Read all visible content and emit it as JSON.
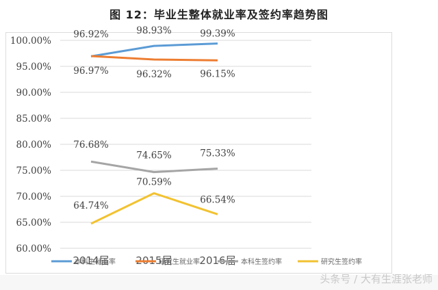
{
  "title": "图 12：毕业生整体就业率及签约率趋势图",
  "watermark": "头条号 / 大有生涯张老师",
  "colors": {
    "series1": "#5b9bd5",
    "series2": "#ed7d31",
    "series3": "#a5a5a5",
    "series4": "#f2c230",
    "grid": "#d9d9d9",
    "text": "#404040"
  },
  "chart_data": {
    "type": "line",
    "title": "图 12：毕业生整体就业率及签约率趋势图",
    "categories": [
      "2014届",
      "2015届",
      "2016届"
    ],
    "series": [
      {
        "name": "本科生就业率",
        "values": [
          96.92,
          98.93,
          99.39
        ],
        "labels": [
          "96.92%",
          "98.93%",
          "99.39%"
        ]
      },
      {
        "name": "研究生就业率",
        "values": [
          96.97,
          96.32,
          96.15
        ],
        "labels": [
          "96.97%",
          "96.32%",
          "96.15%"
        ]
      },
      {
        "name": "本科生签约率",
        "values": [
          76.68,
          74.65,
          75.33
        ],
        "labels": [
          "76.68%",
          "74.65%",
          "75.33%"
        ]
      },
      {
        "name": "研究生签约率",
        "values": [
          64.74,
          70.59,
          66.54
        ],
        "labels": [
          "64.74%",
          "70.59%",
          "66.54%"
        ]
      }
    ],
    "xlabel": "",
    "ylabel": "",
    "ylim": [
      60,
      100
    ],
    "yticks": [
      "100.00%",
      "95.00%",
      "90.00%",
      "85.00%",
      "80.00%",
      "75.00%",
      "70.00%",
      "65.00%",
      "60.00%"
    ],
    "grid": true,
    "legend_position": "bottom"
  }
}
